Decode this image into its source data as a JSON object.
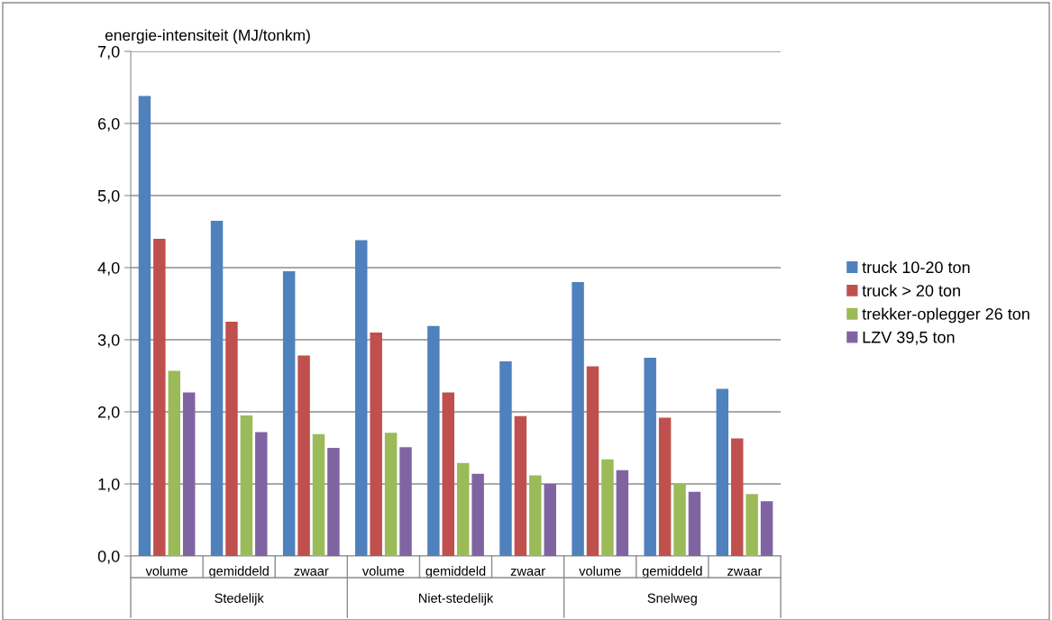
{
  "chart_data": {
    "type": "bar",
    "ylabel": "energie-intensiteit (MJ/tonkm)",
    "categories": [
      "volume",
      "gemiddeld",
      "zwaar",
      "volume",
      "gemiddeld",
      "zwaar",
      "volume",
      "gemiddeld",
      "zwaar"
    ],
    "annotations": [
      "Stedelijk",
      "Niet-stedelijk",
      "Snelweg"
    ],
    "series": [
      {
        "name": "truck 10-20 ton",
        "color": "#4f81bd",
        "values": [
          6.38,
          4.65,
          3.95,
          4.38,
          3.19,
          2.7,
          3.8,
          2.75,
          2.32
        ]
      },
      {
        "name": "truck > 20 ton",
        "color": "#c0504d",
        "values": [
          4.4,
          3.25,
          2.78,
          3.1,
          2.27,
          1.94,
          2.63,
          1.92,
          1.63
        ]
      },
      {
        "name": "trekker-oplegger 26 ton",
        "color": "#9bbb59",
        "values": [
          2.57,
          1.95,
          1.69,
          1.71,
          1.29,
          1.12,
          1.34,
          1.0,
          0.86
        ]
      },
      {
        "name": "LZV 39,5 ton",
        "color": "#8064a2",
        "values": [
          2.27,
          1.72,
          1.5,
          1.51,
          1.14,
          1.0,
          1.19,
          0.89,
          0.76
        ]
      }
    ],
    "ylim": [
      0,
      7
    ],
    "yticks": [
      {
        "value": 0,
        "label": "0,0"
      },
      {
        "value": 1,
        "label": "1,0"
      },
      {
        "value": 2,
        "label": "2,0"
      },
      {
        "value": 3,
        "label": "3,0"
      },
      {
        "value": 4,
        "label": "4,0"
      },
      {
        "value": 5,
        "label": "5,0"
      },
      {
        "value": 6,
        "label": "6,0"
      },
      {
        "value": 7,
        "label": "7,0"
      }
    ],
    "grid": "y",
    "legend": "right"
  }
}
